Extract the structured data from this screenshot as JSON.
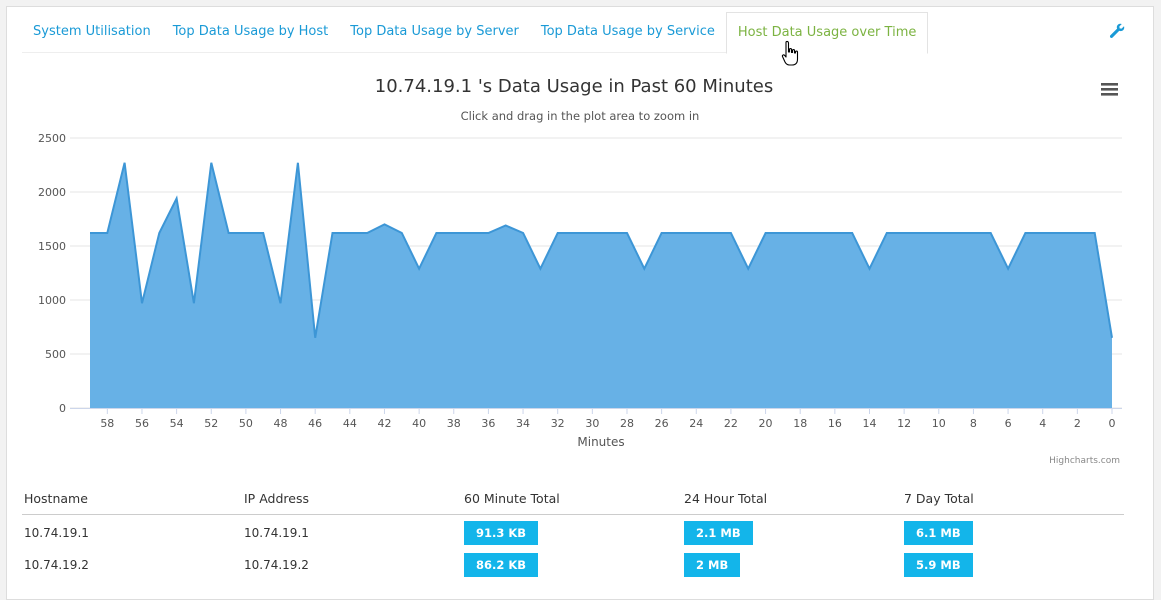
{
  "tabs": [
    {
      "label": "System Utilisation",
      "active": false
    },
    {
      "label": "Top Data Usage by Host",
      "active": false
    },
    {
      "label": "Top Data Usage by Server",
      "active": false
    },
    {
      "label": "Top Data Usage by Service",
      "active": false
    },
    {
      "label": "Host Data Usage over Time",
      "active": true
    }
  ],
  "toolbar": {
    "settings_icon": "wrench-icon",
    "menu_icon": "hamburger-menu-icon"
  },
  "colors": {
    "accent": "#1a9ad6",
    "active_tab": "#7cb342",
    "area_fill": "#67b1e6",
    "area_line": "#3d96d6",
    "badge": "#13b5ea"
  },
  "chart_data": {
    "type": "area",
    "title": "10.74.19.1 's Data Usage in Past 60 Minutes",
    "subtitle": "Click and drag in the plot area to zoom in",
    "xlabel": "Minutes",
    "ylabel": "",
    "credits": "Highcharts.com",
    "xlim": [
      59,
      0
    ],
    "ylim": [
      0,
      2500
    ],
    "yticks": [
      0,
      500,
      1000,
      1500,
      2000,
      2500
    ],
    "xticks": [
      58,
      56,
      54,
      52,
      50,
      48,
      46,
      44,
      42,
      40,
      38,
      36,
      34,
      32,
      30,
      28,
      26,
      24,
      22,
      20,
      18,
      16,
      14,
      12,
      10,
      8,
      6,
      4,
      2,
      0
    ],
    "grid": true,
    "legend": "none",
    "x": [
      59,
      58,
      57,
      56,
      55,
      54,
      53,
      52,
      51,
      50,
      49,
      48,
      47,
      46,
      45,
      44,
      43,
      42,
      41,
      40,
      39,
      38,
      37,
      36,
      35,
      34,
      33,
      32,
      31,
      30,
      29,
      28,
      27,
      26,
      25,
      24,
      23,
      22,
      21,
      20,
      19,
      18,
      17,
      16,
      15,
      14,
      13,
      12,
      11,
      10,
      9,
      8,
      7,
      6,
      5,
      4,
      3,
      2,
      1,
      0
    ],
    "values": [
      1620,
      1620,
      2270,
      970,
      1620,
      1940,
      970,
      2270,
      1620,
      1620,
      1620,
      970,
      2270,
      650,
      1620,
      1620,
      1620,
      1700,
      1620,
      1290,
      1620,
      1620,
      1620,
      1620,
      1690,
      1620,
      1290,
      1620,
      1620,
      1620,
      1620,
      1620,
      1290,
      1620,
      1620,
      1620,
      1620,
      1620,
      1290,
      1620,
      1620,
      1620,
      1620,
      1620,
      1620,
      1290,
      1620,
      1620,
      1620,
      1620,
      1620,
      1620,
      1620,
      1290,
      1620,
      1620,
      1620,
      1620,
      1620,
      650
    ]
  },
  "table": {
    "headers": [
      "Hostname",
      "IP Address",
      "60 Minute Total",
      "24 Hour Total",
      "7 Day Total"
    ],
    "rows": [
      {
        "hostname": "10.74.19.1",
        "ip": "10.74.19.1",
        "m60": "91.3 KB",
        "h24": "2.1 MB",
        "d7": "6.1 MB"
      },
      {
        "hostname": "10.74.19.2",
        "ip": "10.74.19.2",
        "m60": "86.2 KB",
        "h24": "2 MB",
        "d7": "5.9 MB"
      }
    ]
  }
}
